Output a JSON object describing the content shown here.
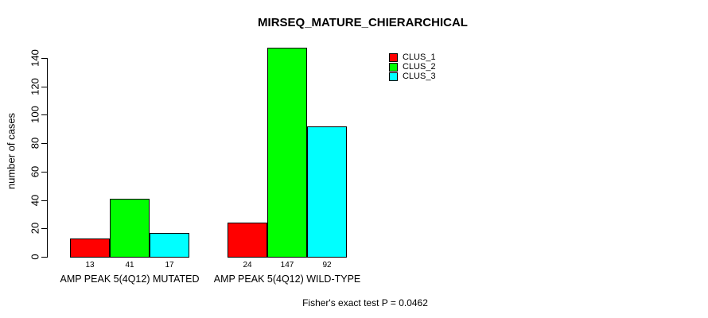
{
  "chart_data": {
    "type": "bar",
    "title": "MIRSEQ_MATURE_CHIERARCHICAL",
    "ylabel": "number of cases",
    "xlabel": "",
    "annotation": "Fisher's exact test P = 0.0462",
    "categories": [
      "AMP PEAK 5(4Q12) MUTATED",
      "AMP PEAK 5(4Q12) WILD-TYPE"
    ],
    "series": [
      {
        "name": "CLUS_1",
        "color": "#ff0000",
        "values": [
          13,
          24
        ]
      },
      {
        "name": "CLUS_2",
        "color": "#00ff00",
        "values": [
          41,
          147
        ]
      },
      {
        "name": "CLUS_3",
        "color": "#00ffff",
        "values": [
          17,
          92
        ]
      }
    ],
    "bar_value_labels": [
      [
        13,
        41,
        17
      ],
      [
        24,
        147,
        92
      ]
    ],
    "yticks": [
      0,
      20,
      40,
      60,
      80,
      100,
      120,
      140
    ],
    "ylim": [
      0,
      140
    ],
    "grid": false,
    "legend": {
      "position": "top-right",
      "entries": [
        {
          "label": "CLUS_1",
          "color": "#ff0000"
        },
        {
          "label": "CLUS_2",
          "color": "#00ff00"
        },
        {
          "label": "CLUS_3",
          "color": "#00ffff"
        }
      ]
    },
    "axis_color": "#000000",
    "background_color": "#ffffff"
  }
}
